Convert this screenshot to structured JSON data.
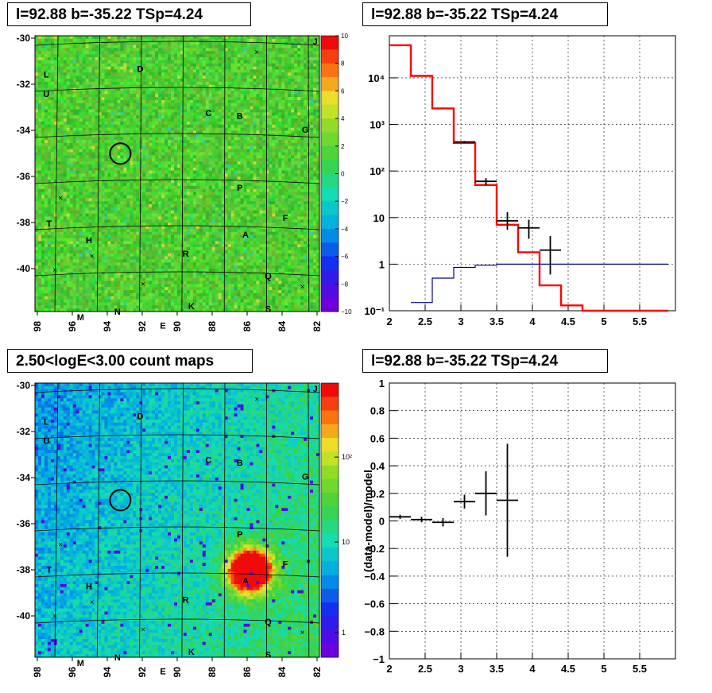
{
  "titles": {
    "map1": "l=92.88 b=-35.22 TSp=4.24",
    "spec": "l=92.88 b=-35.22 TSp=4.24",
    "map2": "2.50<logE<3.00 count maps",
    "resid": "l=92.88 b=-35.22 TSp=4.24"
  },
  "map_axes": {
    "lon_ticks": [
      "98",
      "96",
      "94",
      "92",
      "90",
      "88",
      "86",
      "84",
      "82"
    ],
    "lat_ticks": [
      "-30",
      "-32",
      "-34",
      "-36",
      "-38",
      "-40"
    ],
    "source_labels": [
      "J",
      "D",
      "L",
      "U",
      "C",
      "B",
      "G",
      "P",
      "T",
      "F",
      "H",
      "A",
      "R",
      "Q",
      "K",
      "S",
      "M",
      "N",
      "E"
    ]
  },
  "colorbars": {
    "map1": {
      "scale": "linear",
      "ticks": [
        "10",
        "8",
        "6",
        "4",
        "2",
        "0",
        "−2",
        "−4",
        "−6",
        "−8",
        "−10"
      ]
    },
    "map2": {
      "scale": "log",
      "ticks": [
        "10²",
        "10",
        "1"
      ]
    }
  },
  "chart_data": [
    {
      "type": "heatmap",
      "panel": "residual significance map",
      "xlabel": "",
      "ylabel": "",
      "x_ticks": [
        98,
        96,
        94,
        92,
        90,
        88,
        86,
        84,
        82
      ],
      "y_ticks": [
        -30,
        -32,
        -34,
        -36,
        -38,
        -40
      ],
      "z_range": [
        -10,
        10
      ],
      "circle": {
        "l": 93.2,
        "b": -35.0
      }
    },
    {
      "type": "line",
      "panel": "spectrum",
      "xlabel": "",
      "ylabel": "",
      "x_range": [
        2,
        6
      ],
      "y_scale": "log",
      "y_range": [
        0.1,
        80000
      ],
      "x_ticks": [
        "2",
        "2.5",
        "3",
        "3.5",
        "4",
        "4.5",
        "5",
        "5.5"
      ],
      "y_ticks": [
        "10⁻¹",
        "1",
        "10",
        "10²",
        "10³",
        "10⁴"
      ],
      "grid": true,
      "series": [
        {
          "color": "#ff0000",
          "kind": "step",
          "edges": [
            2,
            2.3,
            2.6,
            2.9,
            3.2,
            3.5,
            3.8,
            4.1,
            4.4,
            4.7,
            5,
            5.3,
            5.6,
            5.9
          ],
          "values": [
            50000,
            11000,
            2200,
            400,
            50,
            7,
            1.8,
            0.35,
            0.13,
            0.1,
            0.1,
            0.1,
            0.1
          ]
        },
        {
          "color": "#000099",
          "kind": "step",
          "edges": [
            2.3,
            2.6,
            2.9,
            3.2,
            3.5,
            3.8,
            4.1,
            4.4,
            4.7,
            5,
            5.3,
            5.6,
            5.9
          ],
          "values": [
            0.15,
            0.5,
            0.85,
            0.95,
            1,
            1,
            1,
            1,
            1,
            1,
            1,
            1
          ]
        },
        {
          "color": "#000000",
          "kind": "points",
          "points": [
            {
              "x": 3.05,
              "xerr": 0.15,
              "y": 420,
              "ylo": 400,
              "yhi": 440
            },
            {
              "x": 3.35,
              "xerr": 0.15,
              "y": 60,
              "ylo": 50,
              "yhi": 70
            },
            {
              "x": 3.65,
              "xerr": 0.15,
              "y": 8.5,
              "ylo": 5.5,
              "yhi": 13
            },
            {
              "x": 3.95,
              "xerr": 0.15,
              "y": 6,
              "ylo": 3.5,
              "yhi": 9
            },
            {
              "x": 4.25,
              "xerr": 0.15,
              "y": 2,
              "ylo": 0.6,
              "yhi": 4
            }
          ]
        }
      ]
    },
    {
      "type": "heatmap",
      "panel": "count map",
      "xlabel": "",
      "ylabel": "",
      "x_ticks": [
        98,
        96,
        94,
        92,
        90,
        88,
        86,
        84,
        82
      ],
      "y_ticks": [
        -30,
        -32,
        -34,
        -36,
        -38,
        -40
      ],
      "z_scale": "log",
      "peak": {
        "l": 85.9,
        "b": -38.0
      },
      "circle": {
        "l": 93.2,
        "b": -35.0
      }
    },
    {
      "type": "scatter",
      "panel": "residuals",
      "xlabel": "",
      "ylabel": "(data-model)/model",
      "x_range": [
        2,
        6
      ],
      "y_range": [
        -1,
        1
      ],
      "x_ticks": [
        "2",
        "2.5",
        "3",
        "3.5",
        "4",
        "4.5",
        "5",
        "5.5"
      ],
      "y_ticks": [
        "−1",
        "−0.8",
        "−0.6",
        "−0.4",
        "−0.2",
        "0",
        "0.2",
        "0.4",
        "0.6",
        "0.8",
        "1"
      ],
      "grid": true,
      "points": [
        {
          "x": 2.15,
          "xerr": 0.15,
          "y": 0.03,
          "yerr": 0.015
        },
        {
          "x": 2.45,
          "xerr": 0.15,
          "y": 0.01,
          "yerr": 0.02
        },
        {
          "x": 2.75,
          "xerr": 0.15,
          "y": -0.01,
          "yerr": 0.03
        },
        {
          "x": 3.05,
          "xerr": 0.15,
          "y": 0.14,
          "yerr": 0.05
        },
        {
          "x": 3.35,
          "xerr": 0.15,
          "y": 0.2,
          "yerr": 0.16
        },
        {
          "x": 3.65,
          "xerr": 0.15,
          "y": 0.15,
          "yerr": 0.41
        }
      ]
    }
  ]
}
